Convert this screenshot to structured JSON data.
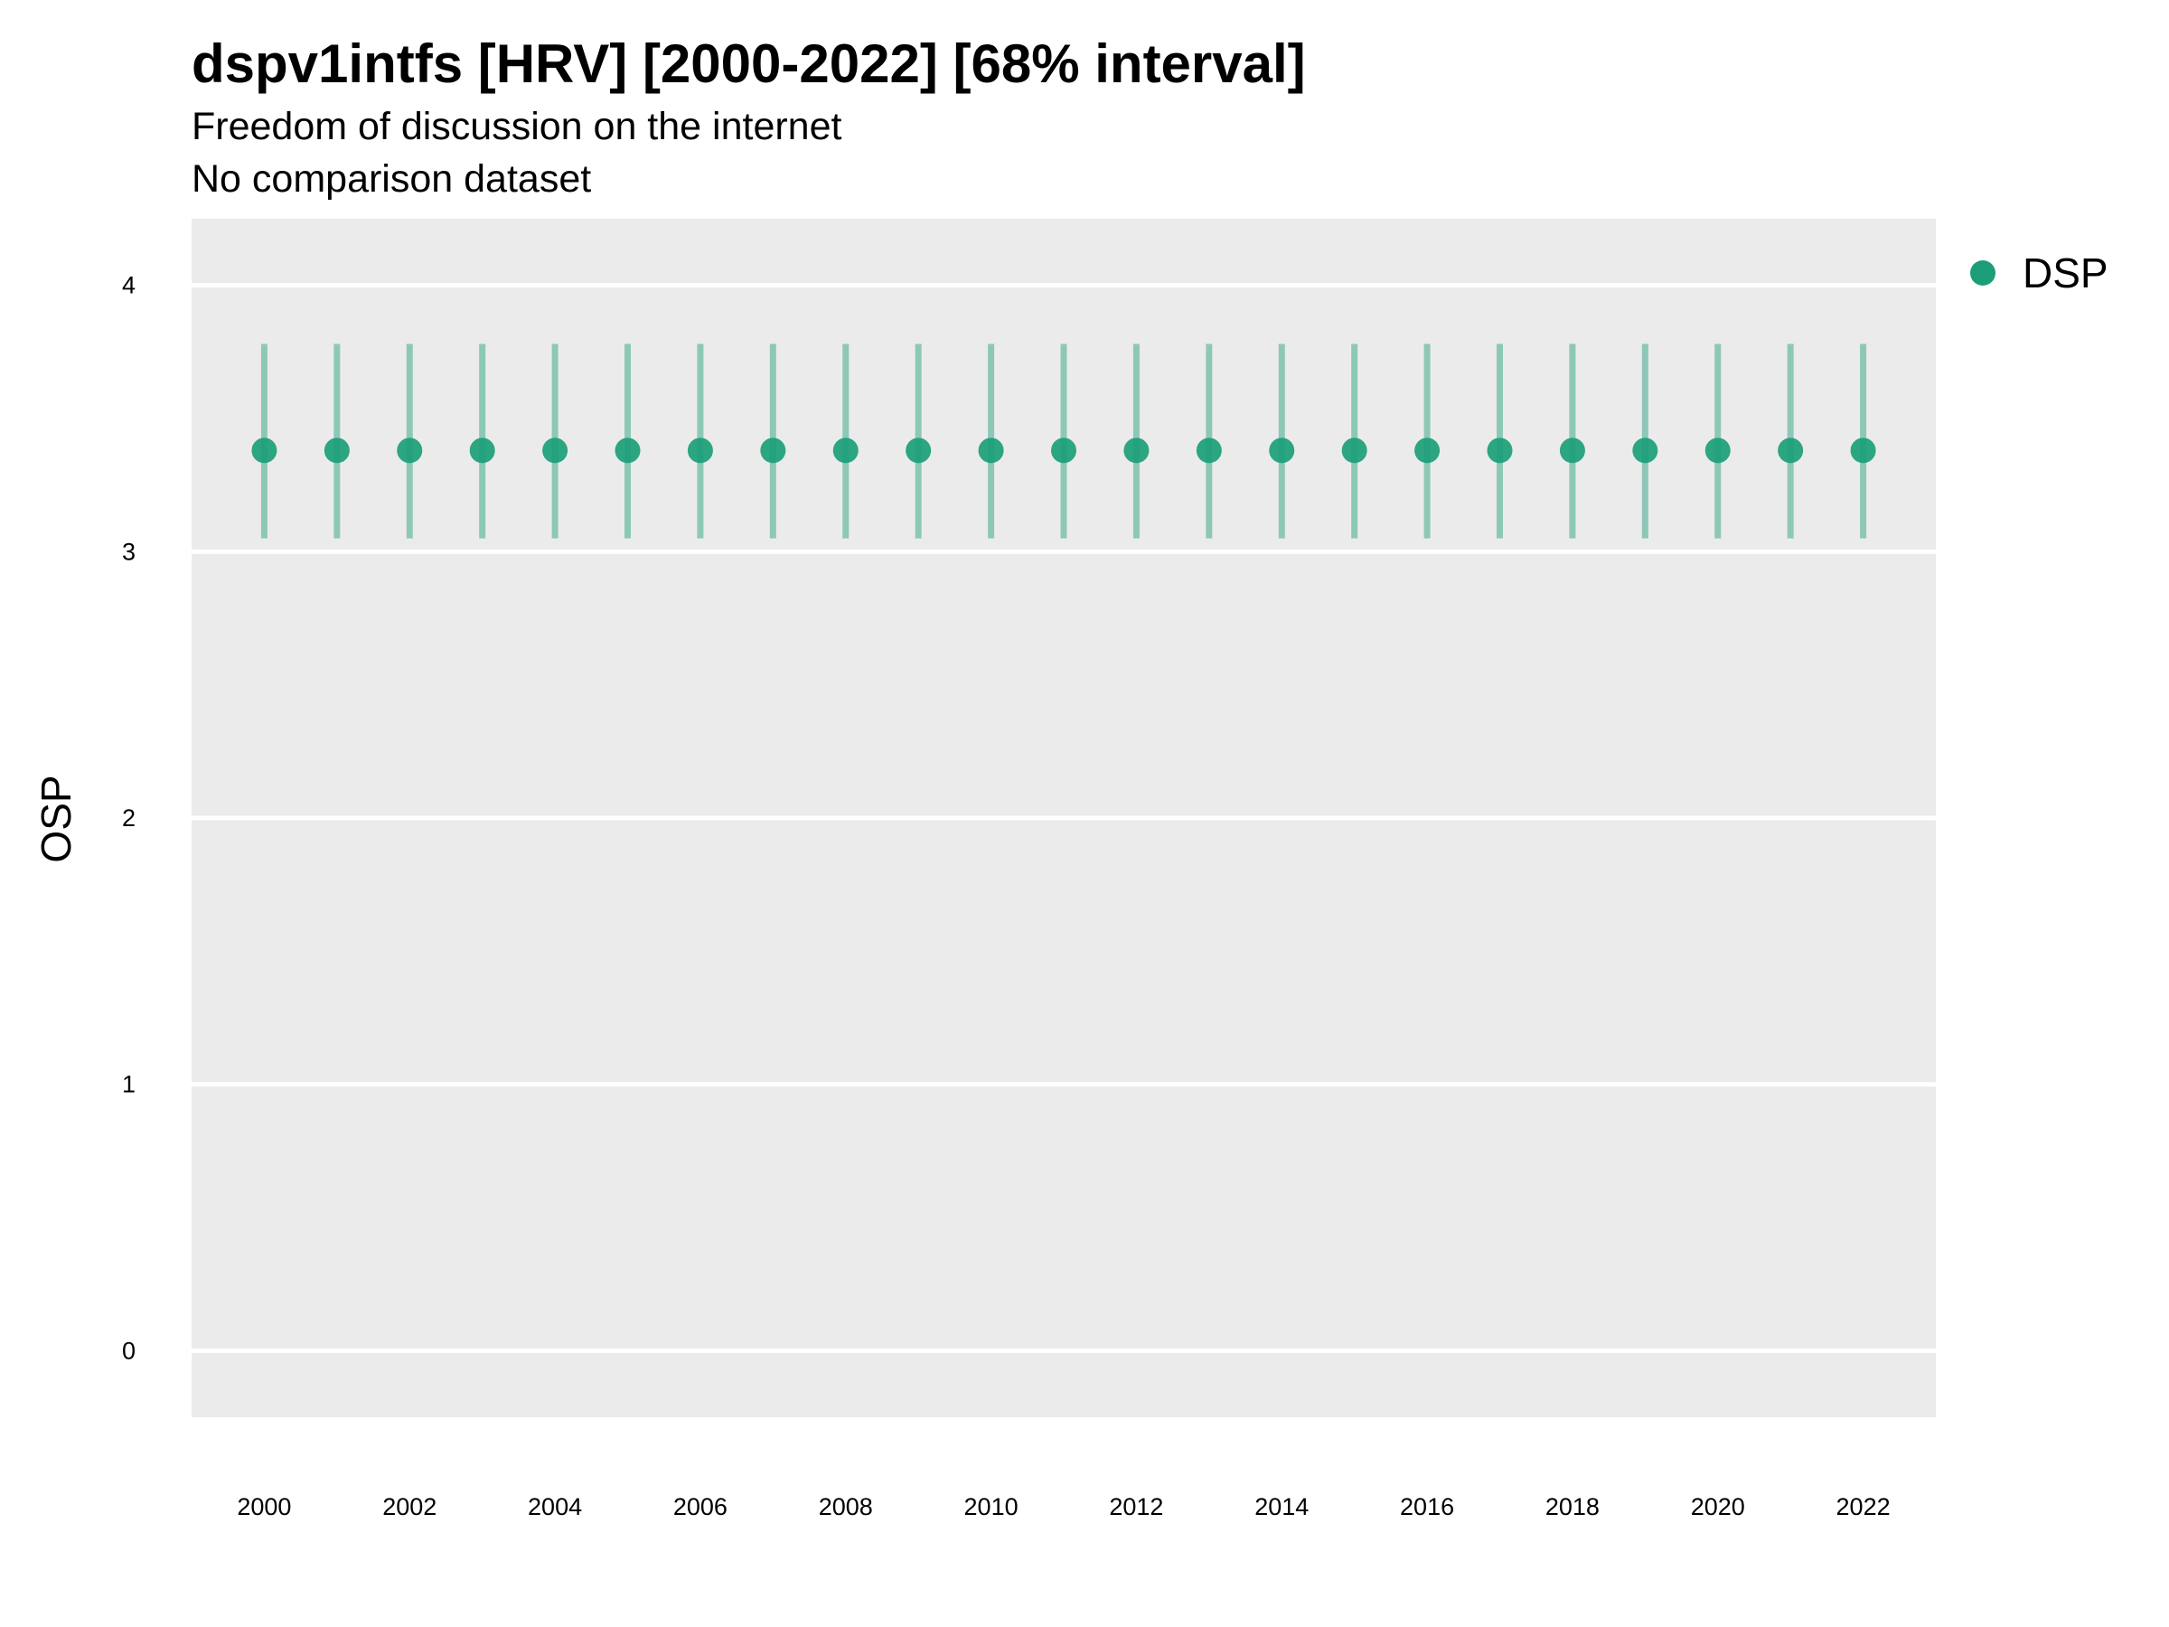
{
  "chart_data": {
    "type": "scatter",
    "title": "dspv1intfs [HRV] [2000-2022] [68% interval]",
    "subtitle": [
      "Freedom of discussion on the internet",
      "No comparison dataset"
    ],
    "xlabel": "",
    "ylabel": "OSP",
    "xlim": [
      1999,
      2023
    ],
    "ylim": [
      -0.25,
      4.25
    ],
    "x_ticks": [
      2000,
      2002,
      2004,
      2006,
      2008,
      2010,
      2012,
      2014,
      2016,
      2018,
      2020,
      2022
    ],
    "x_tick_labels": [
      "2000",
      "2002",
      "2004",
      "2006",
      "2008",
      "2010",
      "2012",
      "2014",
      "2016",
      "2018",
      "2020",
      "2022"
    ],
    "y_ticks": [
      0,
      1,
      2,
      3,
      4
    ],
    "y_tick_labels": [
      "0",
      "1",
      "2",
      "3",
      "4"
    ],
    "grid": true,
    "legend_position": "right-top",
    "series": [
      {
        "name": "DSP",
        "color": "#1b9e77",
        "x": [
          2000,
          2001,
          2002,
          2003,
          2004,
          2005,
          2006,
          2007,
          2008,
          2009,
          2010,
          2011,
          2012,
          2013,
          2014,
          2015,
          2016,
          2017,
          2018,
          2019,
          2020,
          2021,
          2022
        ],
        "y": [
          3.38,
          3.38,
          3.38,
          3.38,
          3.38,
          3.38,
          3.38,
          3.38,
          3.38,
          3.38,
          3.38,
          3.38,
          3.38,
          3.38,
          3.38,
          3.38,
          3.38,
          3.38,
          3.38,
          3.38,
          3.38,
          3.38,
          3.38
        ],
        "lower": [
          3.05,
          3.05,
          3.05,
          3.05,
          3.05,
          3.05,
          3.05,
          3.05,
          3.05,
          3.05,
          3.05,
          3.05,
          3.05,
          3.05,
          3.05,
          3.05,
          3.05,
          3.05,
          3.05,
          3.05,
          3.05,
          3.05,
          3.05
        ],
        "upper": [
          3.78,
          3.78,
          3.78,
          3.78,
          3.78,
          3.78,
          3.78,
          3.78,
          3.78,
          3.78,
          3.78,
          3.78,
          3.78,
          3.78,
          3.78,
          3.78,
          3.78,
          3.78,
          3.78,
          3.78,
          3.78,
          3.78,
          3.78
        ]
      }
    ],
    "panel_color": "#ebebeb",
    "grid_color": "#ffffff"
  }
}
